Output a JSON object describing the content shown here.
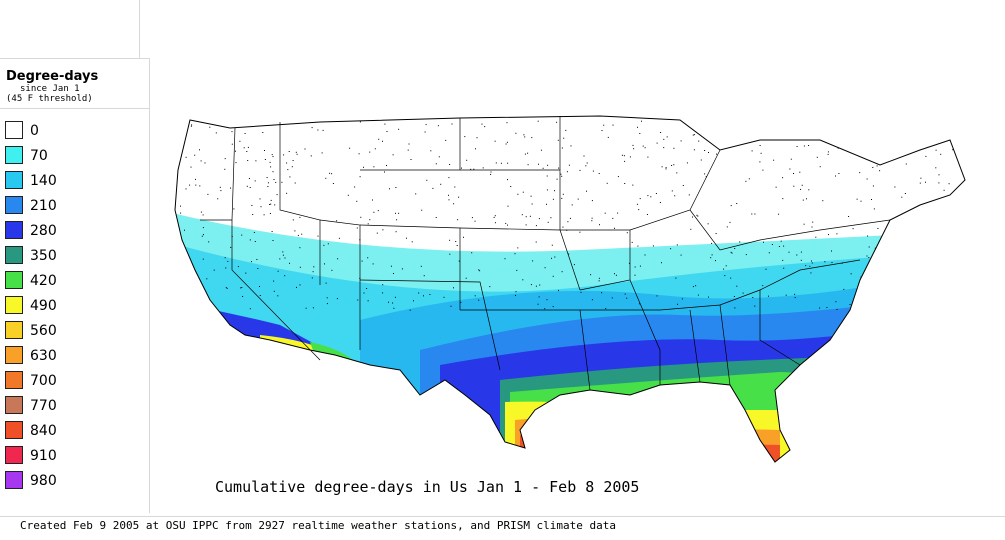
{
  "legend": {
    "title": "Degree-days",
    "subtitle_line1": "since Jan 1",
    "subtitle_line2": "(45 F threshold)",
    "items": [
      {
        "label": "0",
        "color": "#ffffff"
      },
      {
        "label": "70",
        "color": "#40f0f0"
      },
      {
        "label": "140",
        "color": "#28c8f0"
      },
      {
        "label": "210",
        "color": "#2888f0"
      },
      {
        "label": "280",
        "color": "#2838e8"
      },
      {
        "label": "350",
        "color": "#289880"
      },
      {
        "label": "420",
        "color": "#48e048"
      },
      {
        "label": "490",
        "color": "#f8f828"
      },
      {
        "label": "560",
        "color": "#f8d028"
      },
      {
        "label": "630",
        "color": "#f8a028"
      },
      {
        "label": "700",
        "color": "#f07828"
      },
      {
        "label": "770",
        "color": "#c87858"
      },
      {
        "label": "840",
        "color": "#f05028"
      },
      {
        "label": "910",
        "color": "#f02850"
      },
      {
        "label": "980",
        "color": "#a838f0"
      }
    ]
  },
  "map": {
    "title": "Cumulative degree-days in Us Jan 1 - Feb 8 2005",
    "region": "Continental United States"
  },
  "footer": {
    "text": "Created Feb 9 2005 at OSU IPPC from 2927 realtime weather stations, and PRISM climate data"
  }
}
